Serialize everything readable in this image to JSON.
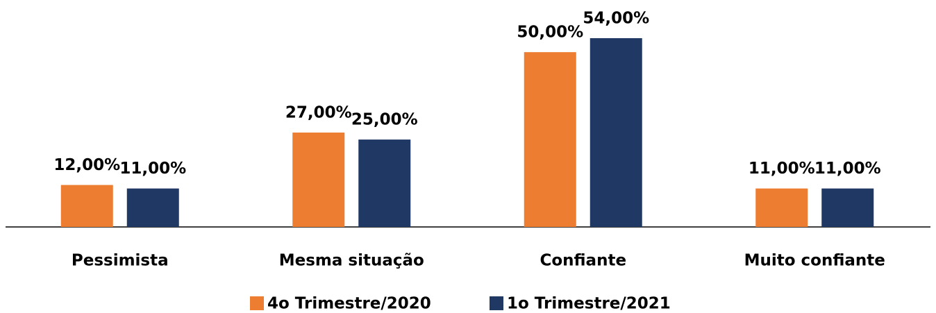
{
  "chart_data": {
    "type": "bar",
    "categories": [
      "Pessimista",
      "Mesma situação",
      "Confiante",
      "Muito confiante"
    ],
    "series": [
      {
        "name": "4o Trimestre/2020",
        "color": "#ed7d31",
        "values": [
          12,
          27,
          50,
          11
        ],
        "value_labels": [
          "12,00%",
          "27,00%",
          "50,00%",
          "11,00%"
        ]
      },
      {
        "name": "1o Trimestre/2021",
        "color": "#203864",
        "values": [
          11,
          25,
          54,
          11
        ],
        "value_labels": [
          "11,00%",
          "25,00%",
          "54,00%",
          "11,00%"
        ]
      }
    ],
    "legend": "bottom"
  }
}
